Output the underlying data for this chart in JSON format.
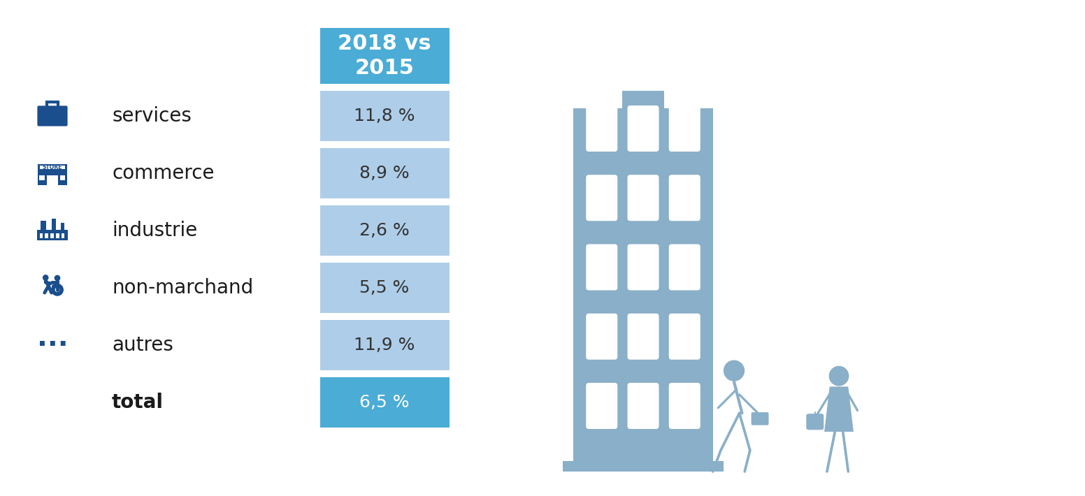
{
  "title_box": "2018 vs\n2015",
  "title_box_color": "#4BACD6",
  "title_box_text_color": "#FFFFFF",
  "categories": [
    "services",
    "commerce",
    "industrie",
    "non-marchand",
    "autres",
    "total"
  ],
  "values": [
    "11,8 %",
    "8,9 %",
    "2,6 %",
    "5,5 %",
    "11,9 %",
    "6,5 %"
  ],
  "row_colors": [
    "#AECDE8",
    "#AECDE8",
    "#AECDE8",
    "#AECDE8",
    "#AECDE8",
    "#4BACD6"
  ],
  "text_colors": [
    "#333333",
    "#333333",
    "#333333",
    "#333333",
    "#333333",
    "#FFFFFF"
  ],
  "label_color": "#1a1a1a",
  "icon_color": "#1A4E8C",
  "silhouette_color": "#8AAFC8",
  "background_color": "#FFFFFF",
  "fig_width": 15.52,
  "fig_height": 7.1,
  "dpi": 100
}
